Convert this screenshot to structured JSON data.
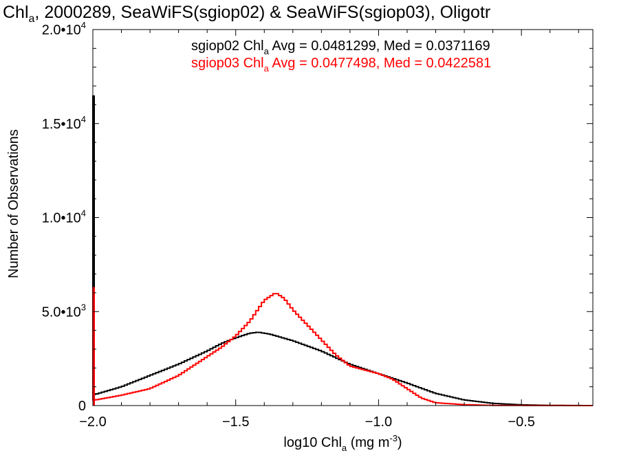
{
  "chart_data": {
    "type": "histogram-step",
    "title": {
      "pre": "Chl",
      "sub": "a",
      "post": ", 2000289, SeaWiFS(sgiop02) & SeaWiFS(sgiop03), Oligotr"
    },
    "xlabel": {
      "pre": "log10 Chl",
      "sub": "a",
      "post": " (mg m",
      "sup": "-3",
      "end": ")"
    },
    "ylabel": "Number of Observations",
    "xlim": [
      -2.0,
      -0.25
    ],
    "ylim": [
      0,
      20000
    ],
    "x_ticks": [
      {
        "value": -2.0,
        "label": "−2.0"
      },
      {
        "value": -1.5,
        "label": "−1.5"
      },
      {
        "value": -1.0,
        "label": "−1.0"
      },
      {
        "value": -0.5,
        "label": "−0.5"
      }
    ],
    "y_ticks": [
      {
        "value": 0,
        "mant": "0",
        "exp": ""
      },
      {
        "value": 5000,
        "mant": "5.0•10",
        "exp": "3"
      },
      {
        "value": 10000,
        "mant": "1.0•10",
        "exp": "4"
      },
      {
        "value": 15000,
        "mant": "1.5•10",
        "exp": "4"
      },
      {
        "value": 20000,
        "mant": "2.0•10",
        "exp": "4"
      }
    ],
    "series": [
      {
        "color": "#000000",
        "annotation": {
          "pre": "sgiop02 Chl",
          "sub": "a",
          "post": " Avg = 0.0481299, Med = 0.0371169"
        },
        "spike": {
          "x": -2.0,
          "y": 16500
        },
        "points": [
          [
            -1.99,
            600
          ],
          [
            -1.9,
            1000
          ],
          [
            -1.8,
            1600
          ],
          [
            -1.7,
            2200
          ],
          [
            -1.6,
            2900
          ],
          [
            -1.55,
            3300
          ],
          [
            -1.5,
            3600
          ],
          [
            -1.45,
            3850
          ],
          [
            -1.42,
            3900
          ],
          [
            -1.38,
            3800
          ],
          [
            -1.3,
            3450
          ],
          [
            -1.2,
            2900
          ],
          [
            -1.1,
            2200
          ],
          [
            -1.0,
            1700
          ],
          [
            -0.9,
            1200
          ],
          [
            -0.8,
            650
          ],
          [
            -0.7,
            300
          ],
          [
            -0.6,
            120
          ],
          [
            -0.5,
            40
          ],
          [
            -0.4,
            10
          ],
          [
            -0.25,
            0
          ]
        ]
      },
      {
        "color": "#ff0000",
        "annotation": {
          "pre": "sgiop03 Chl",
          "sub": "a",
          "post": " Avg = 0.0477498, Med = 0.0422581"
        },
        "spike": {
          "x": -2.0,
          "y": 6300
        },
        "points": [
          [
            -1.99,
            300
          ],
          [
            -1.9,
            550
          ],
          [
            -1.8,
            900
          ],
          [
            -1.7,
            1600
          ],
          [
            -1.6,
            2600
          ],
          [
            -1.55,
            3100
          ],
          [
            -1.5,
            3700
          ],
          [
            -1.45,
            4500
          ],
          [
            -1.4,
            5600
          ],
          [
            -1.36,
            6000
          ],
          [
            -1.33,
            5700
          ],
          [
            -1.3,
            5100
          ],
          [
            -1.25,
            4300
          ],
          [
            -1.2,
            3500
          ],
          [
            -1.15,
            2700
          ],
          [
            -1.1,
            2100
          ],
          [
            -1.0,
            1700
          ],
          [
            -0.95,
            1400
          ],
          [
            -0.9,
            900
          ],
          [
            -0.85,
            400
          ],
          [
            -0.8,
            150
          ],
          [
            -0.7,
            50
          ],
          [
            -0.6,
            10
          ],
          [
            -0.25,
            0
          ]
        ]
      }
    ]
  }
}
